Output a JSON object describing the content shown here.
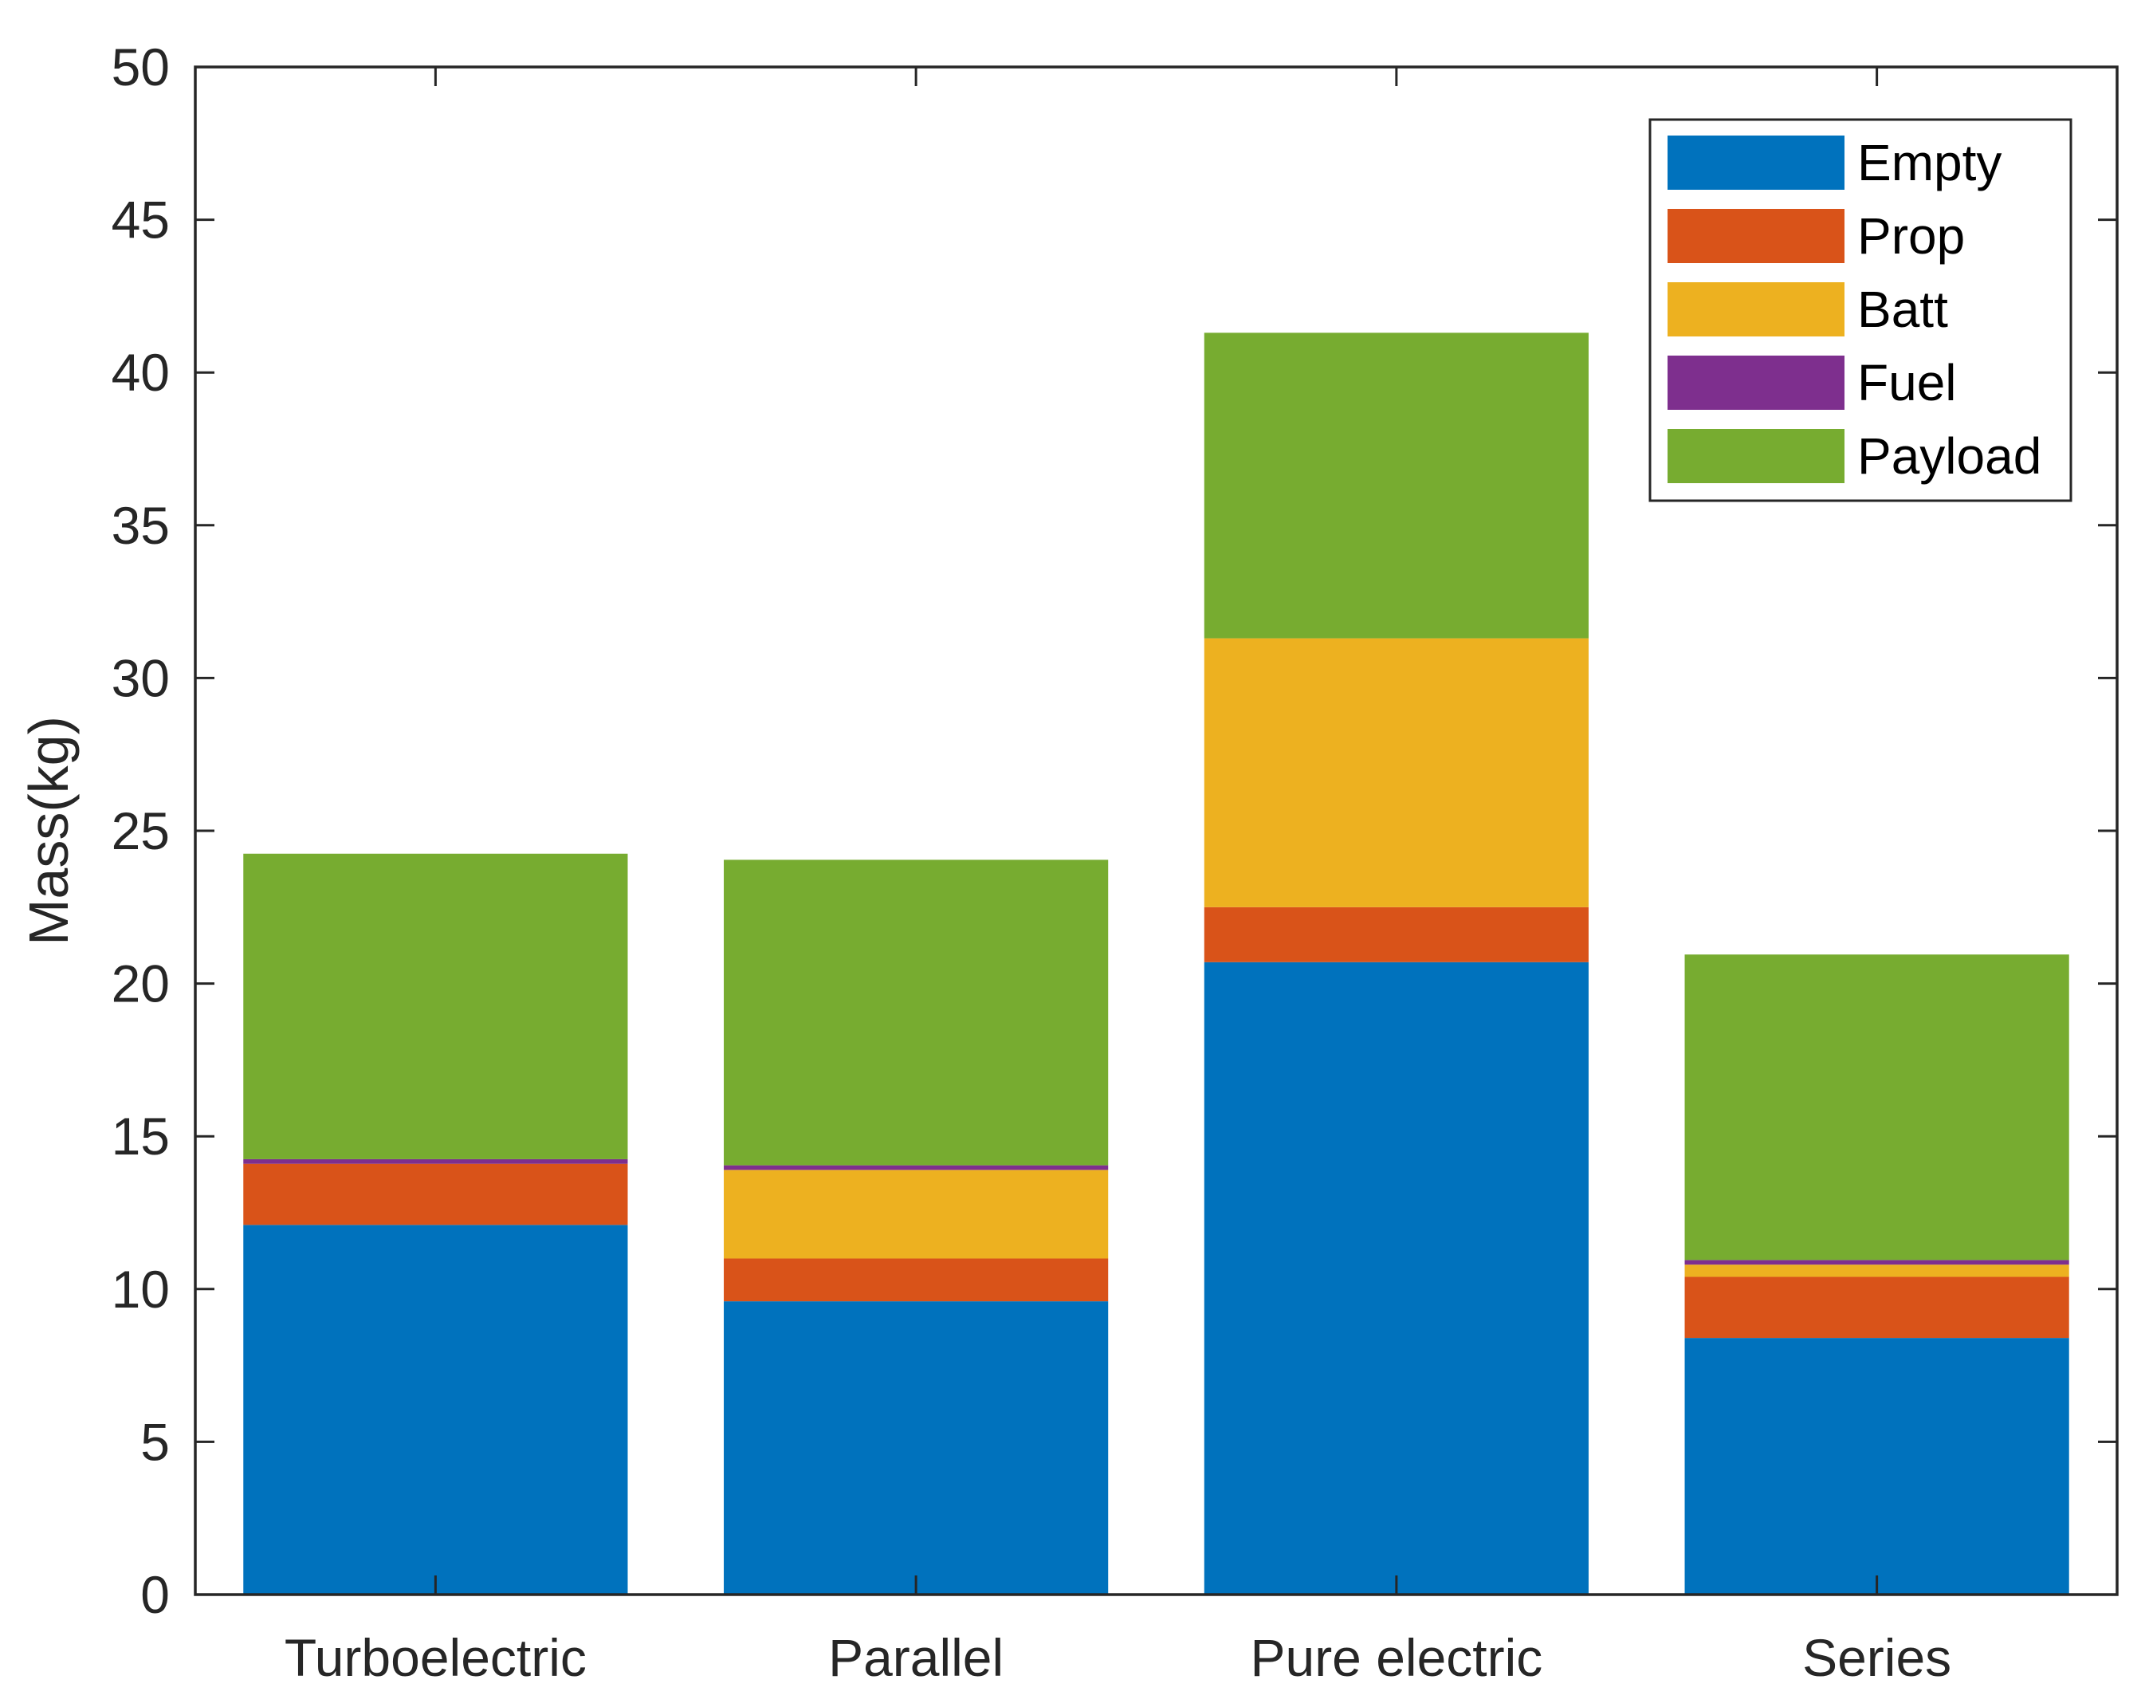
{
  "chart_data": {
    "type": "bar",
    "stacked": true,
    "title": "",
    "xlabel": "",
    "ylabel": "Mass(kg)",
    "ylim": [
      0,
      50
    ],
    "yticks": [
      0,
      5,
      10,
      15,
      20,
      25,
      30,
      35,
      40,
      45,
      50
    ],
    "grid": false,
    "legend_position": "top-right",
    "categories": [
      "Turboelectric",
      "Parallel",
      "Pure electric",
      "Series"
    ],
    "series": [
      {
        "name": "Empty",
        "color": "#0072BD",
        "values": [
          12.1,
          9.6,
          20.7,
          8.4
        ]
      },
      {
        "name": "Prop",
        "color": "#D95319",
        "values": [
          2.0,
          1.4,
          1.8,
          2.0
        ]
      },
      {
        "name": "Batt",
        "color": "#EDB120",
        "values": [
          0.0,
          2.9,
          8.8,
          0.4
        ]
      },
      {
        "name": "Fuel",
        "color": "#7E2F8E",
        "values": [
          0.15,
          0.15,
          0.0,
          0.15
        ]
      },
      {
        "name": "Payload",
        "color": "#77AC30",
        "values": [
          10.0,
          10.0,
          10.0,
          10.0
        ]
      }
    ]
  }
}
